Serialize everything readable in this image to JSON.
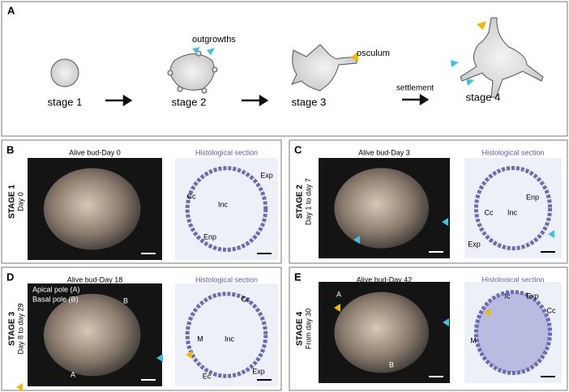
{
  "panel_a": {
    "letter": "A",
    "stages": [
      "stage 1",
      "stage 2",
      "stage 3",
      "stage 4"
    ],
    "annotations": [
      "outgrowths",
      "osculum"
    ],
    "transition": "settlement"
  },
  "panels": [
    {
      "letter": "B",
      "stage": "STAGE 1",
      "period": "Day 0",
      "photo_title": "Alive bud-Day 0",
      "section_title": "Histological section",
      "photo_labels": [],
      "section_labels": [
        "Exp",
        "Cc",
        "Inc",
        "Enp"
      ]
    },
    {
      "letter": "C",
      "stage": "STAGE 2",
      "period": "Day 1 to day 7",
      "photo_title": "Alive bud-Day 3",
      "section_title": "Histological section",
      "photo_labels": [],
      "section_labels": [
        "Enp",
        "Cc",
        "Inc",
        "Exp"
      ]
    },
    {
      "letter": "D",
      "stage": "STAGE 3",
      "period": "Day 8 to day 29",
      "photo_title": "Alive bud-Day 18",
      "section_title": "Histological section",
      "photo_labels": [
        "Apical pole (A)",
        "Basal pole (B)",
        "B",
        "A"
      ],
      "section_labels": [
        "Cc",
        "M",
        "Inc",
        "Ec",
        "Exp"
      ]
    },
    {
      "letter": "E",
      "stage": "STAGE 4",
      "period": "From day 30",
      "photo_title": "Alive bud-Day 42",
      "section_title": "Histological section",
      "photo_labels": [
        "A",
        "B"
      ],
      "section_labels": [
        "Ic",
        "Exp",
        "Cc",
        "M"
      ]
    }
  ]
}
